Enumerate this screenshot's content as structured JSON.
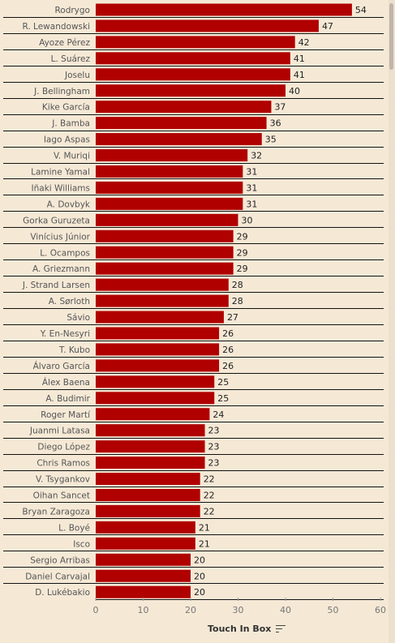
{
  "chart_data": {
    "type": "bar",
    "orientation": "horizontal",
    "xlabel": "Touch In Box",
    "xlim": [
      0,
      62
    ],
    "xticks": [
      "0",
      "10",
      "20",
      "30",
      "40",
      "50",
      "60"
    ],
    "bar_color": "#b00000",
    "background": "#f5e9d6",
    "categories": [
      "Rodrygo",
      "R. Lewandowski",
      "Ayoze Pérez",
      "L. Suárez",
      "Joselu",
      "J. Bellingham",
      "Kike García",
      "J. Bamba",
      "Iago Aspas",
      "V. Muriqi",
      "Lamine Yamal",
      "Iñaki Williams",
      "A. Dovbyk",
      "Gorka Guruzeta",
      "Vinícius Júnior",
      "L. Ocampos",
      "A. Griezmann",
      "J. Strand Larsen",
      "A. Sørloth",
      "Sávio",
      "Y. En-Nesyri",
      "T. Kubo",
      "Álvaro García",
      "Álex Baena",
      "A. Budimir",
      "Roger Martí",
      "Juanmi Latasa",
      "Diego López",
      "Chris Ramos",
      "V. Tsygankov",
      "Oihan Sancet",
      "Bryan Zaragoza",
      "L. Boyé",
      "Isco",
      "Sergio Arribas",
      "Daniel Carvajal",
      "D. Lukébakio"
    ],
    "values": [
      54,
      47,
      42,
      41,
      41,
      40,
      37,
      36,
      35,
      32,
      31,
      31,
      31,
      30,
      29,
      29,
      29,
      28,
      28,
      27,
      26,
      26,
      26,
      25,
      25,
      24,
      23,
      23,
      23,
      22,
      22,
      22,
      21,
      21,
      20,
      20,
      20
    ]
  },
  "axis": {
    "title": "Touch In Box",
    "sort_icon": "sort-descending-icon"
  }
}
